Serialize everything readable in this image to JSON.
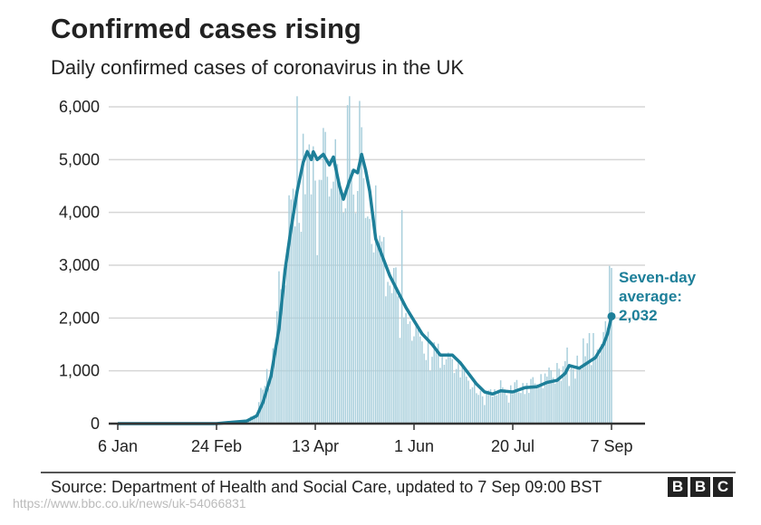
{
  "chart_data": {
    "type": "bar",
    "title": "Confirmed cases rising",
    "subtitle": "Daily confirmed cases of coronavirus in the UK",
    "start_date": "2020-01-06",
    "x_ticks": [
      {
        "date": "2020-01-06",
        "label": "6 Jan"
      },
      {
        "date": "2020-02-24",
        "label": "24 Feb"
      },
      {
        "date": "2020-04-13",
        "label": "13 Apr"
      },
      {
        "date": "2020-06-01",
        "label": "1 Jun"
      },
      {
        "date": "2020-07-20",
        "label": "20 Jul"
      },
      {
        "date": "2020-09-07",
        "label": "7 Sep"
      }
    ],
    "y_ticks": [
      0,
      1000,
      2000,
      3000,
      4000,
      5000,
      6000
    ],
    "y_tick_labels": [
      "0",
      "1,000",
      "2,000",
      "3,000",
      "4,000",
      "5,000",
      "6,000"
    ],
    "ylim": [
      0,
      6200
    ],
    "grid": "horizontal",
    "daily_cases": [
      0,
      0,
      0,
      0,
      0,
      0,
      0,
      0,
      0,
      0,
      0,
      0,
      0,
      0,
      0,
      0,
      0,
      0,
      0,
      0,
      0,
      0,
      0,
      0,
      1,
      0,
      0,
      0,
      0,
      0,
      0,
      0,
      0,
      0,
      0,
      0,
      0,
      0,
      0,
      0,
      0,
      0,
      0,
      0,
      0,
      0,
      0,
      0,
      0,
      0,
      2,
      0,
      3,
      1,
      12,
      4,
      11,
      34,
      29,
      48,
      43,
      67,
      48,
      46,
      50,
      83,
      134,
      117,
      133,
      152,
      407,
      676,
      643,
      714,
      1035,
      665,
      967,
      1427,
      1452,
      2129,
      2885,
      2546,
      2433,
      2619,
      3009,
      4324,
      4244,
      4450,
      3735,
      6200,
      3802,
      3634,
      5491,
      4344,
      5195,
      5288,
      4342,
      5252,
      4603,
      3190,
      4618,
      4617,
      5599,
      5525,
      4676,
      4301,
      4451,
      4583,
      5386,
      4913,
      4463,
      4309,
      3996,
      4076,
      6032,
      6201,
      4806,
      4339,
      3985,
      4406,
      6111,
      5614,
      4649,
      3896,
      3923,
      3877,
      3403,
      3242,
      4512,
      3446,
      3560,
      3450,
      3534,
      2412,
      2684,
      2615,
      2472,
      2948,
      2959,
      2412,
      1625,
      4043,
      2013,
      2095,
      1887,
      1936,
      1570,
      1653,
      1871,
      1805,
      1650,
      1557,
      1326,
      1205,
      1741,
      1003,
      1266,
      1541,
      1425,
      1514,
      1056,
      1279,
      1115,
      1218,
      1346,
      1295,
      1221,
      958,
      1035,
      1221,
      874,
      1118,
      1006,
      890,
      814,
      652,
      689,
      829,
      576,
      544,
      624,
      516,
      352,
      581,
      630,
      650,
      512,
      651,
      538,
      642,
      820,
      687,
      650,
      538,
      398,
      726,
      560,
      784,
      827,
      592,
      580,
      769,
      560,
      768,
      581,
      846,
      880,
      763,
      744,
      743,
      938,
      670,
      950,
      891,
      1062,
      1009,
      871,
      758,
      1148,
      1040,
      812,
      1089,
      1182,
      1441,
      713,
      1089,
      1033,
      853,
      1288,
      1041,
      1033,
      1615,
      1276,
      1522,
      1715,
      1108,
      1715,
      1276,
      1406,
      1295,
      1508,
      1735,
      1940,
      1813,
      2988,
      2948
    ],
    "seven_day_average": [
      [
        "2020-01-06",
        0
      ],
      [
        "2020-02-24",
        0
      ],
      [
        "2020-03-01",
        20
      ],
      [
        "2020-03-10",
        50
      ],
      [
        "2020-03-15",
        150
      ],
      [
        "2020-03-18",
        400
      ],
      [
        "2020-03-22",
        900
      ],
      [
        "2020-03-26",
        1800
      ],
      [
        "2020-03-29",
        2900
      ],
      [
        "2020-04-01",
        3700
      ],
      [
        "2020-04-04",
        4400
      ],
      [
        "2020-04-07",
        4950
      ],
      [
        "2020-04-09",
        5150
      ],
      [
        "2020-04-11",
        5000
      ],
      [
        "2020-04-12",
        5150
      ],
      [
        "2020-04-14",
        5000
      ],
      [
        "2020-04-17",
        5100
      ],
      [
        "2020-04-20",
        4900
      ],
      [
        "2020-04-22",
        5050
      ],
      [
        "2020-04-25",
        4500
      ],
      [
        "2020-04-27",
        4250
      ],
      [
        "2020-04-30",
        4600
      ],
      [
        "2020-05-02",
        4800
      ],
      [
        "2020-05-04",
        4750
      ],
      [
        "2020-05-06",
        5100
      ],
      [
        "2020-05-08",
        4800
      ],
      [
        "2020-05-10",
        4400
      ],
      [
        "2020-05-13",
        3500
      ],
      [
        "2020-05-17",
        3100
      ],
      [
        "2020-05-20",
        2800
      ],
      [
        "2020-05-24",
        2500
      ],
      [
        "2020-05-28",
        2200
      ],
      [
        "2020-06-01",
        1950
      ],
      [
        "2020-06-05",
        1700
      ],
      [
        "2020-06-10",
        1500
      ],
      [
        "2020-06-14",
        1300
      ],
      [
        "2020-06-20",
        1300
      ],
      [
        "2020-06-24",
        1150
      ],
      [
        "2020-06-28",
        950
      ],
      [
        "2020-07-02",
        750
      ],
      [
        "2020-07-06",
        600
      ],
      [
        "2020-07-10",
        560
      ],
      [
        "2020-07-14",
        620
      ],
      [
        "2020-07-20",
        600
      ],
      [
        "2020-07-26",
        680
      ],
      [
        "2020-08-01",
        700
      ],
      [
        "2020-08-06",
        780
      ],
      [
        "2020-08-11",
        820
      ],
      [
        "2020-08-15",
        950
      ],
      [
        "2020-08-17",
        1100
      ],
      [
        "2020-08-22",
        1050
      ],
      [
        "2020-08-26",
        1150
      ],
      [
        "2020-08-30",
        1250
      ],
      [
        "2020-09-03",
        1500
      ],
      [
        "2020-09-05",
        1700
      ],
      [
        "2020-09-07",
        2032
      ]
    ],
    "annotation": {
      "line1": "Seven-day",
      "line2": "average:",
      "value": "2,032"
    },
    "colors": {
      "bars": "#a9cfdc",
      "average_line": "#1d7f99",
      "grid": "#d6d6d6",
      "axis": "#333333"
    }
  },
  "footer": {
    "source": "Source: Department of Health and Social Care, updated to 7 Sep 09:00 BST",
    "logo": [
      "B",
      "B",
      "C"
    ],
    "watermark_url": "https://www.bbc.co.uk/news/uk-54066831"
  }
}
